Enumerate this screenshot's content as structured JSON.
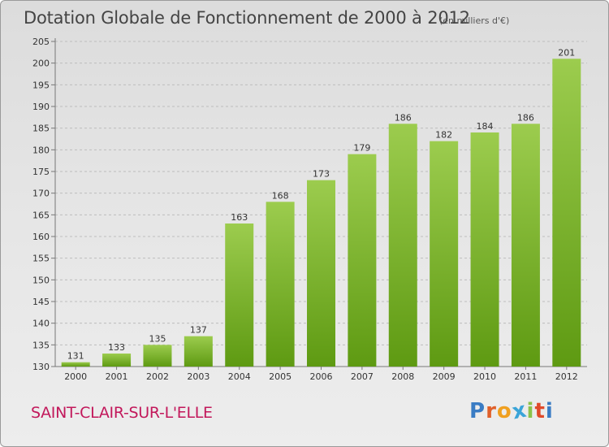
{
  "title": "Dotation Globale de Fonctionnement de 2000 à 2012",
  "unit": "(en milliers d'€)",
  "city": "SAINT-CLAIR-SUR-L'ELLE",
  "logo": {
    "text": "Proxiti",
    "colors": [
      "#3a7cc4",
      "#e0602a",
      "#f0a020",
      "#3aa4d8",
      "#8bc34a",
      "#e04a2a",
      "#3a7cc4"
    ]
  },
  "colors": {
    "bar_top": "#9ccc4e",
    "bar_bottom": "#5e9a12",
    "grid": "#bdbdbd",
    "axis_text": "#333333"
  },
  "chart_data": {
    "type": "bar",
    "categories": [
      "2000",
      "2001",
      "2002",
      "2003",
      "2004",
      "2005",
      "2006",
      "2007",
      "2008",
      "2009",
      "2010",
      "2011",
      "2012"
    ],
    "values": [
      131,
      133,
      135,
      137,
      163,
      168,
      173,
      179,
      186,
      182,
      184,
      186,
      201
    ],
    "title": "Dotation Globale de Fonctionnement de 2000 à 2012",
    "xlabel": "",
    "ylabel": "",
    "ylim": [
      130,
      205
    ],
    "yticks": [
      130,
      135,
      140,
      145,
      150,
      155,
      160,
      165,
      170,
      175,
      180,
      185,
      190,
      195,
      200,
      205
    ],
    "grid": true,
    "data_labels": true,
    "legend": "none"
  }
}
